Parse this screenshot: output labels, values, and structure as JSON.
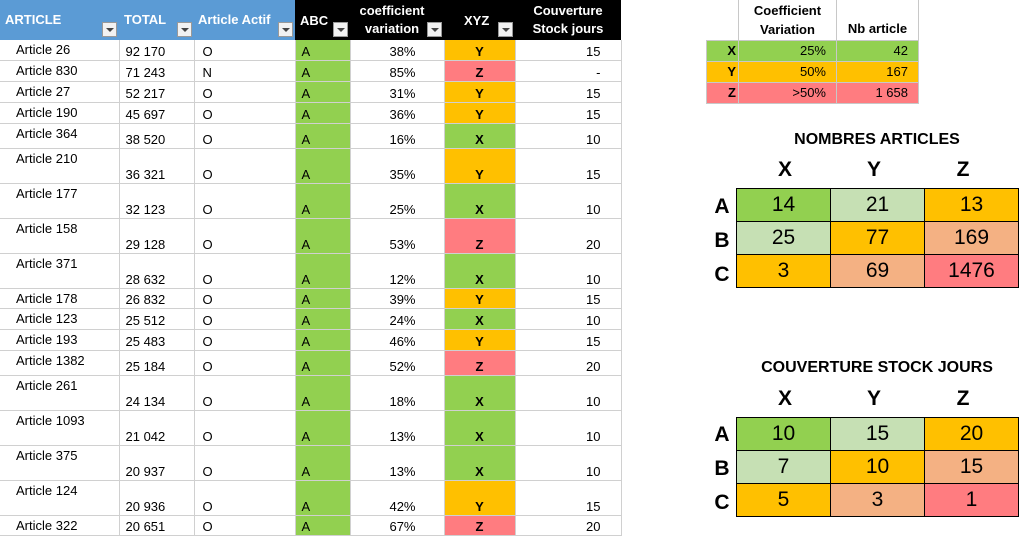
{
  "headers": {
    "article": "ARTICLE",
    "total": "TOTAL",
    "actif": "Article Actif",
    "abc": "ABC",
    "coef": "coefficient variation",
    "xyz": "XYZ",
    "couv": "Couverture Stock jours"
  },
  "rows": [
    {
      "article": "Article 26",
      "total": "92 170",
      "actif": "O",
      "abc": "A",
      "coef": "38%",
      "xyz": "Y",
      "couv": "15"
    },
    {
      "article": "Article 830",
      "total": "71 243",
      "actif": "N",
      "abc": "A",
      "coef": "85%",
      "xyz": "Z",
      "couv": "-"
    },
    {
      "article": "Article 27",
      "total": "52 217",
      "actif": "O",
      "abc": "A",
      "coef": "31%",
      "xyz": "Y",
      "couv": "15"
    },
    {
      "article": "Article 190",
      "total": "45 697",
      "actif": "O",
      "abc": "A",
      "coef": "36%",
      "xyz": "Y",
      "couv": "15"
    },
    {
      "article": "Article 364",
      "total": "38 520",
      "actif": "O",
      "abc": "A",
      "coef": "16%",
      "xyz": "X",
      "couv": "10"
    },
    {
      "article": "Article 210",
      "total": "36 321",
      "actif": "O",
      "abc": "A",
      "coef": "35%",
      "xyz": "Y",
      "couv": "15"
    },
    {
      "article": "Article 177",
      "total": "32 123",
      "actif": "O",
      "abc": "A",
      "coef": "25%",
      "xyz": "X",
      "couv": "10"
    },
    {
      "article": "Article 158",
      "total": "29 128",
      "actif": "O",
      "abc": "A",
      "coef": "53%",
      "xyz": "Z",
      "couv": "20"
    },
    {
      "article": "Article 371",
      "total": "28 632",
      "actif": "O",
      "abc": "A",
      "coef": "12%",
      "xyz": "X",
      "couv": "10"
    },
    {
      "article": "Article 178",
      "total": "26 832",
      "actif": "O",
      "abc": "A",
      "coef": "39%",
      "xyz": "Y",
      "couv": "15"
    },
    {
      "article": "Article 123",
      "total": "25 512",
      "actif": "O",
      "abc": "A",
      "coef": "24%",
      "xyz": "X",
      "couv": "10"
    },
    {
      "article": "Article 193",
      "total": "25 483",
      "actif": "O",
      "abc": "A",
      "coef": "46%",
      "xyz": "Y",
      "couv": "15"
    },
    {
      "article": "Article 1382",
      "total": "25 184",
      "actif": "O",
      "abc": "A",
      "coef": "52%",
      "xyz": "Z",
      "couv": "20"
    },
    {
      "article": "Article 261",
      "total": "24 134",
      "actif": "O",
      "abc": "A",
      "coef": "18%",
      "xyz": "X",
      "couv": "10"
    },
    {
      "article": "Article 1093",
      "total": "21 042",
      "actif": "O",
      "abc": "A",
      "coef": "13%",
      "xyz": "X",
      "couv": "10"
    },
    {
      "article": "Article 375",
      "total": "20 937",
      "actif": "O",
      "abc": "A",
      "coef": "13%",
      "xyz": "X",
      "couv": "10"
    },
    {
      "article": "Article 124",
      "total": "20 936",
      "actif": "O",
      "abc": "A",
      "coef": "42%",
      "xyz": "Y",
      "couv": "15"
    },
    {
      "article": "Article 322",
      "total": "20 651",
      "actif": "O",
      "abc": "A",
      "coef": "67%",
      "xyz": "Z",
      "couv": "20"
    }
  ],
  "legend": {
    "header_coef": "Coefficient Variation",
    "header_nb": "Nb article",
    "rows": [
      {
        "key": "X",
        "coef": "25%",
        "nb": "42"
      },
      {
        "key": "Y",
        "coef": "50%",
        "nb": "167"
      },
      {
        "key": "Z",
        "coef": ">50%",
        "nb": "1 658"
      }
    ]
  },
  "nombres": {
    "title": "NOMBRES ARTICLES",
    "cols": [
      "X",
      "Y",
      "Z"
    ],
    "rows": [
      {
        "label": "A",
        "values": [
          "14",
          "21",
          "13"
        ]
      },
      {
        "label": "B",
        "values": [
          "25",
          "77",
          "169"
        ]
      },
      {
        "label": "C",
        "values": [
          "3",
          "69",
          "1476"
        ]
      }
    ]
  },
  "couverture": {
    "title": "COUVERTURE STOCK JOURS",
    "cols": [
      "X",
      "Y",
      "Z"
    ],
    "rows": [
      {
        "label": "A",
        "values": [
          "10",
          "15",
          "20"
        ]
      },
      {
        "label": "B",
        "values": [
          "7",
          "10",
          "15"
        ]
      },
      {
        "label": "C",
        "values": [
          "5",
          "3",
          "1"
        ]
      }
    ]
  },
  "colors": {
    "x": "#92d050",
    "y": "#ffc000",
    "z": "#ff7c80",
    "light_green": "#c6e0b4",
    "light_orange": "#f4b183",
    "header_blue": "#5b9bd5"
  }
}
